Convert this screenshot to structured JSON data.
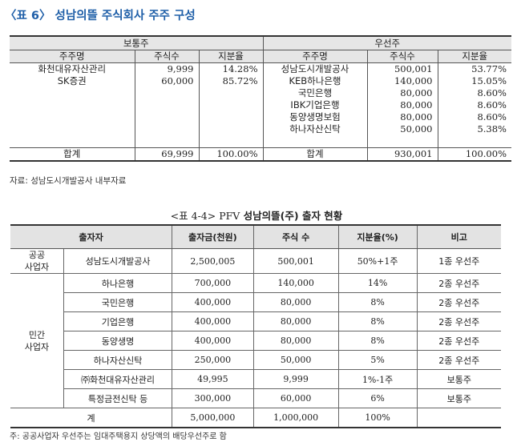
{
  "table1": {
    "title": "〈표 6〉 성남의뜰 주식회사 주주 구성",
    "group_common": "보통주",
    "group_preferred": "우선주",
    "col_name": "주주명",
    "col_shares": "주식수",
    "col_ratio": "지분율",
    "common_rows": [
      {
        "name": "화천대유자산관리",
        "shares": "9,999",
        "ratio": "14.28%"
      },
      {
        "name": "SK증권",
        "shares": "60,000",
        "ratio": "85.72%"
      },
      {
        "name": "",
        "shares": "",
        "ratio": ""
      },
      {
        "name": "",
        "shares": "",
        "ratio": ""
      },
      {
        "name": "",
        "shares": "",
        "ratio": ""
      },
      {
        "name": "",
        "shares": "",
        "ratio": ""
      },
      {
        "name": "",
        "shares": "",
        "ratio": ""
      }
    ],
    "preferred_rows": [
      {
        "name": "성남도시개발공사",
        "shares": "500,001",
        "ratio": "53.77%"
      },
      {
        "name": "KEB하나은행",
        "shares": "140,000",
        "ratio": "15.05%"
      },
      {
        "name": "국민은행",
        "shares": "80,000",
        "ratio": "8.60%"
      },
      {
        "name": "IBK기업은행",
        "shares": "80,000",
        "ratio": "8.60%"
      },
      {
        "name": "동양생명보험",
        "shares": "80,000",
        "ratio": "8.60%"
      },
      {
        "name": "하나자산신탁",
        "shares": "50,000",
        "ratio": "5.38%"
      }
    ],
    "total_label": "합계",
    "common_total_shares": "69,999",
    "common_total_ratio": "100.00%",
    "preferred_total_shares": "930,001",
    "preferred_total_ratio": "100.00%",
    "source": "자료: 성남도시개발공사 내부자료"
  },
  "table2": {
    "title_prefix": "<표 4-4> PFV",
    "title_rest": "성남의뜰(주) 출자 현황",
    "headers": [
      "출자자",
      "출자금(천원)",
      "주식 수",
      "지분율(%)",
      "비고"
    ],
    "group_public": "공공\n사업자",
    "group_private": "민간\n사업자",
    "rows": [
      {
        "name": "성남도시개발공사",
        "amount": "2,500,005",
        "shares": "500,001",
        "ratio": "50%+1주",
        "note": "1종 우선주"
      },
      {
        "name": "하나은행",
        "amount": "700,000",
        "shares": "140,000",
        "ratio": "14%",
        "note": "2종 우선주"
      },
      {
        "name": "국민은행",
        "amount": "400,000",
        "shares": "80,000",
        "ratio": "8%",
        "note": "2종 우선주"
      },
      {
        "name": "기업은행",
        "amount": "400,000",
        "shares": "80,000",
        "ratio": "8%",
        "note": "2종 우선주"
      },
      {
        "name": "동양생명",
        "amount": "400,000",
        "shares": "80,000",
        "ratio": "8%",
        "note": "2종 우선주"
      },
      {
        "name": "하나자산신탁",
        "amount": "250,000",
        "shares": "50,000",
        "ratio": "5%",
        "note": "2종 우선주"
      },
      {
        "name": "㈜화천대유자산관리",
        "amount": "49,995",
        "shares": "9,999",
        "ratio": "1%-1주",
        "note": "보통주"
      },
      {
        "name": "특정금전신탁 등",
        "amount": "300,000",
        "shares": "60,000",
        "ratio": "6%",
        "note": "보통주"
      }
    ],
    "total_label": "계",
    "total_amount": "5,000,000",
    "total_shares": "1,000,000",
    "total_ratio": "100%",
    "total_note": "",
    "note": "주: 공공사업자 우선주는 임대주택용지 상당액의 배당우선주로 함"
  }
}
